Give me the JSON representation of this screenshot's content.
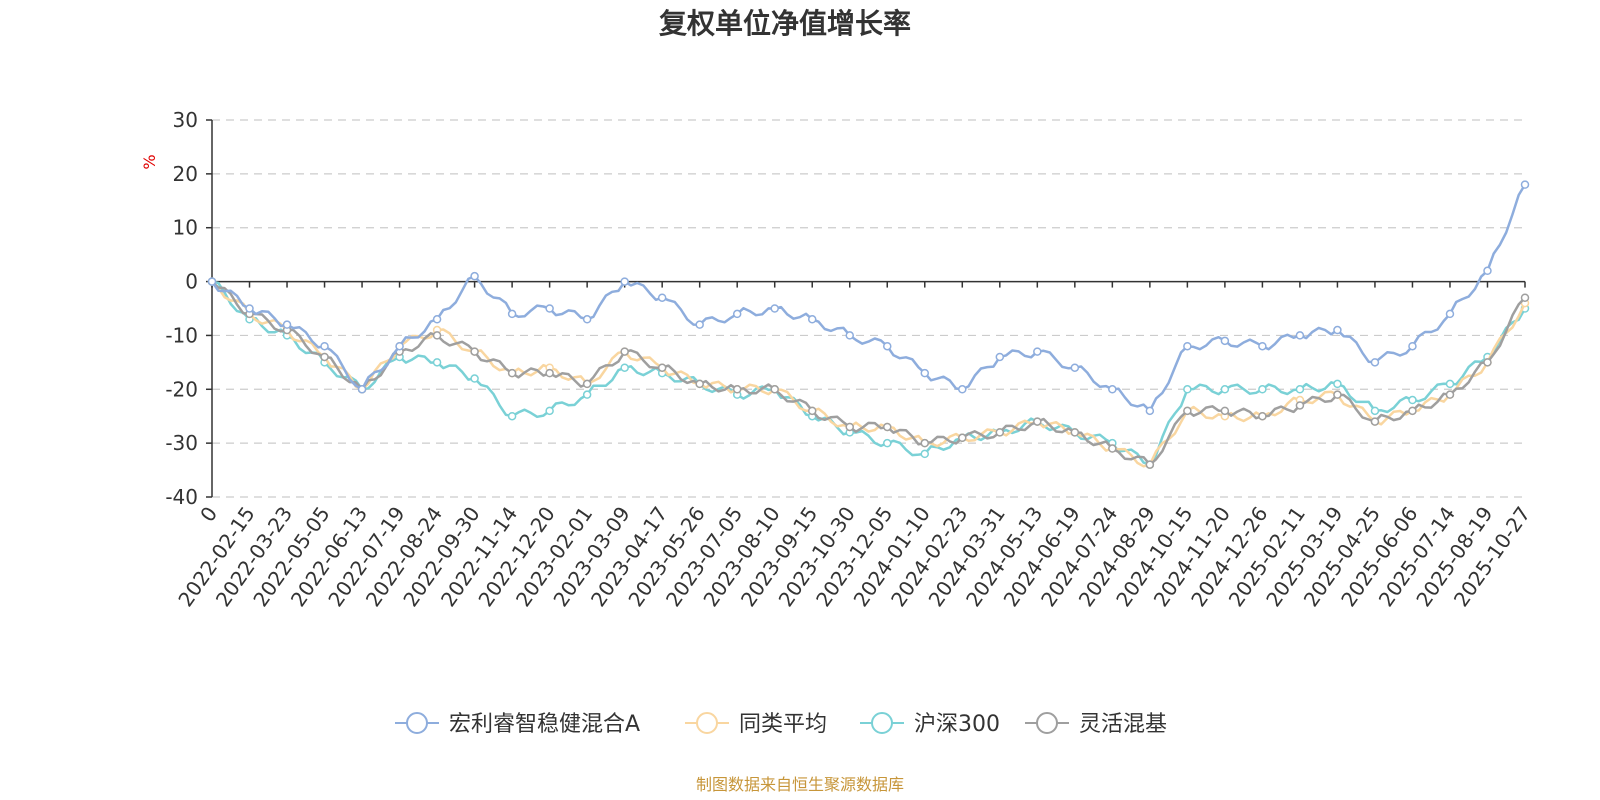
{
  "chart_data": {
    "type": "line",
    "title": "复权单位净值增长率",
    "unit_label": "%",
    "source": "制图数据来自恒生聚源数据库",
    "ylim": [
      -40,
      30
    ],
    "yticks": [
      30,
      20,
      10,
      0,
      -10,
      -20,
      -30,
      -40
    ],
    "grid": true,
    "legend_position": "bottom",
    "x": [
      "0",
      "2022-02-15",
      "2022-03-23",
      "2022-05-05",
      "2022-06-13",
      "2022-07-19",
      "2022-08-24",
      "2022-09-30",
      "2022-11-14",
      "2022-12-20",
      "2023-02-01",
      "2023-03-09",
      "2023-04-17",
      "2023-05-26",
      "2023-07-05",
      "2023-08-10",
      "2023-09-15",
      "2023-10-30",
      "2023-12-05",
      "2024-01-10",
      "2024-02-23",
      "2024-03-31",
      "2024-05-13",
      "2024-06-19",
      "2024-07-24",
      "2024-08-29",
      "2024-10-15",
      "2024-11-20",
      "2024-12-26",
      "2025-02-11",
      "2025-03-19",
      "2025-04-25",
      "2025-06-06",
      "2025-07-14",
      "2025-08-19",
      "2025-10-27"
    ],
    "series": [
      {
        "name": "宏利睿智稳健混合A",
        "color": "#8eaddd",
        "values": [
          0,
          -5,
          -8,
          -12,
          -20,
          -12,
          -7,
          1,
          -6,
          -5,
          -7,
          0,
          -3,
          -8,
          -6,
          -5,
          -7,
          -10,
          -12,
          -17,
          -20,
          -14,
          -13,
          -16,
          -20,
          -24,
          -12,
          -11,
          -12,
          -10,
          -9,
          -15,
          -12,
          -6,
          2,
          18
        ]
      },
      {
        "name": "同类平均",
        "color": "#f9d6a0",
        "values": [
          0,
          -6,
          -9,
          -14,
          -20,
          -12,
          -9,
          -13,
          -17,
          -16,
          -19,
          -13,
          -16,
          -19,
          -20,
          -20,
          -24,
          -27,
          -27,
          -30,
          -29,
          -28,
          -26,
          -28,
          -31,
          -34,
          -24,
          -25,
          -25,
          -22,
          -21,
          -26,
          -24,
          -21,
          -15,
          -4
        ]
      },
      {
        "name": "沪深300",
        "color": "#7ad1d6",
        "values": [
          0,
          -7,
          -10,
          -15,
          -20,
          -14,
          -15,
          -18,
          -25,
          -24,
          -21,
          -16,
          -17,
          -19,
          -21,
          -20,
          -25,
          -28,
          -30,
          -32,
          -29,
          -28,
          -26,
          -28,
          -30,
          -34,
          -20,
          -20,
          -20,
          -20,
          -19,
          -24,
          -22,
          -19,
          -14,
          -5
        ]
      },
      {
        "name": "灵活混基",
        "color": "#9f9f9f",
        "values": [
          0,
          -6,
          -9,
          -14,
          -20,
          -13,
          -10,
          -13,
          -17,
          -17,
          -19,
          -13,
          -16,
          -19,
          -20,
          -20,
          -24,
          -27,
          -27,
          -30,
          -29,
          -28,
          -26,
          -28,
          -31,
          -34,
          -24,
          -24,
          -25,
          -23,
          -21,
          -26,
          -24,
          -21,
          -15,
          -3
        ]
      }
    ]
  }
}
